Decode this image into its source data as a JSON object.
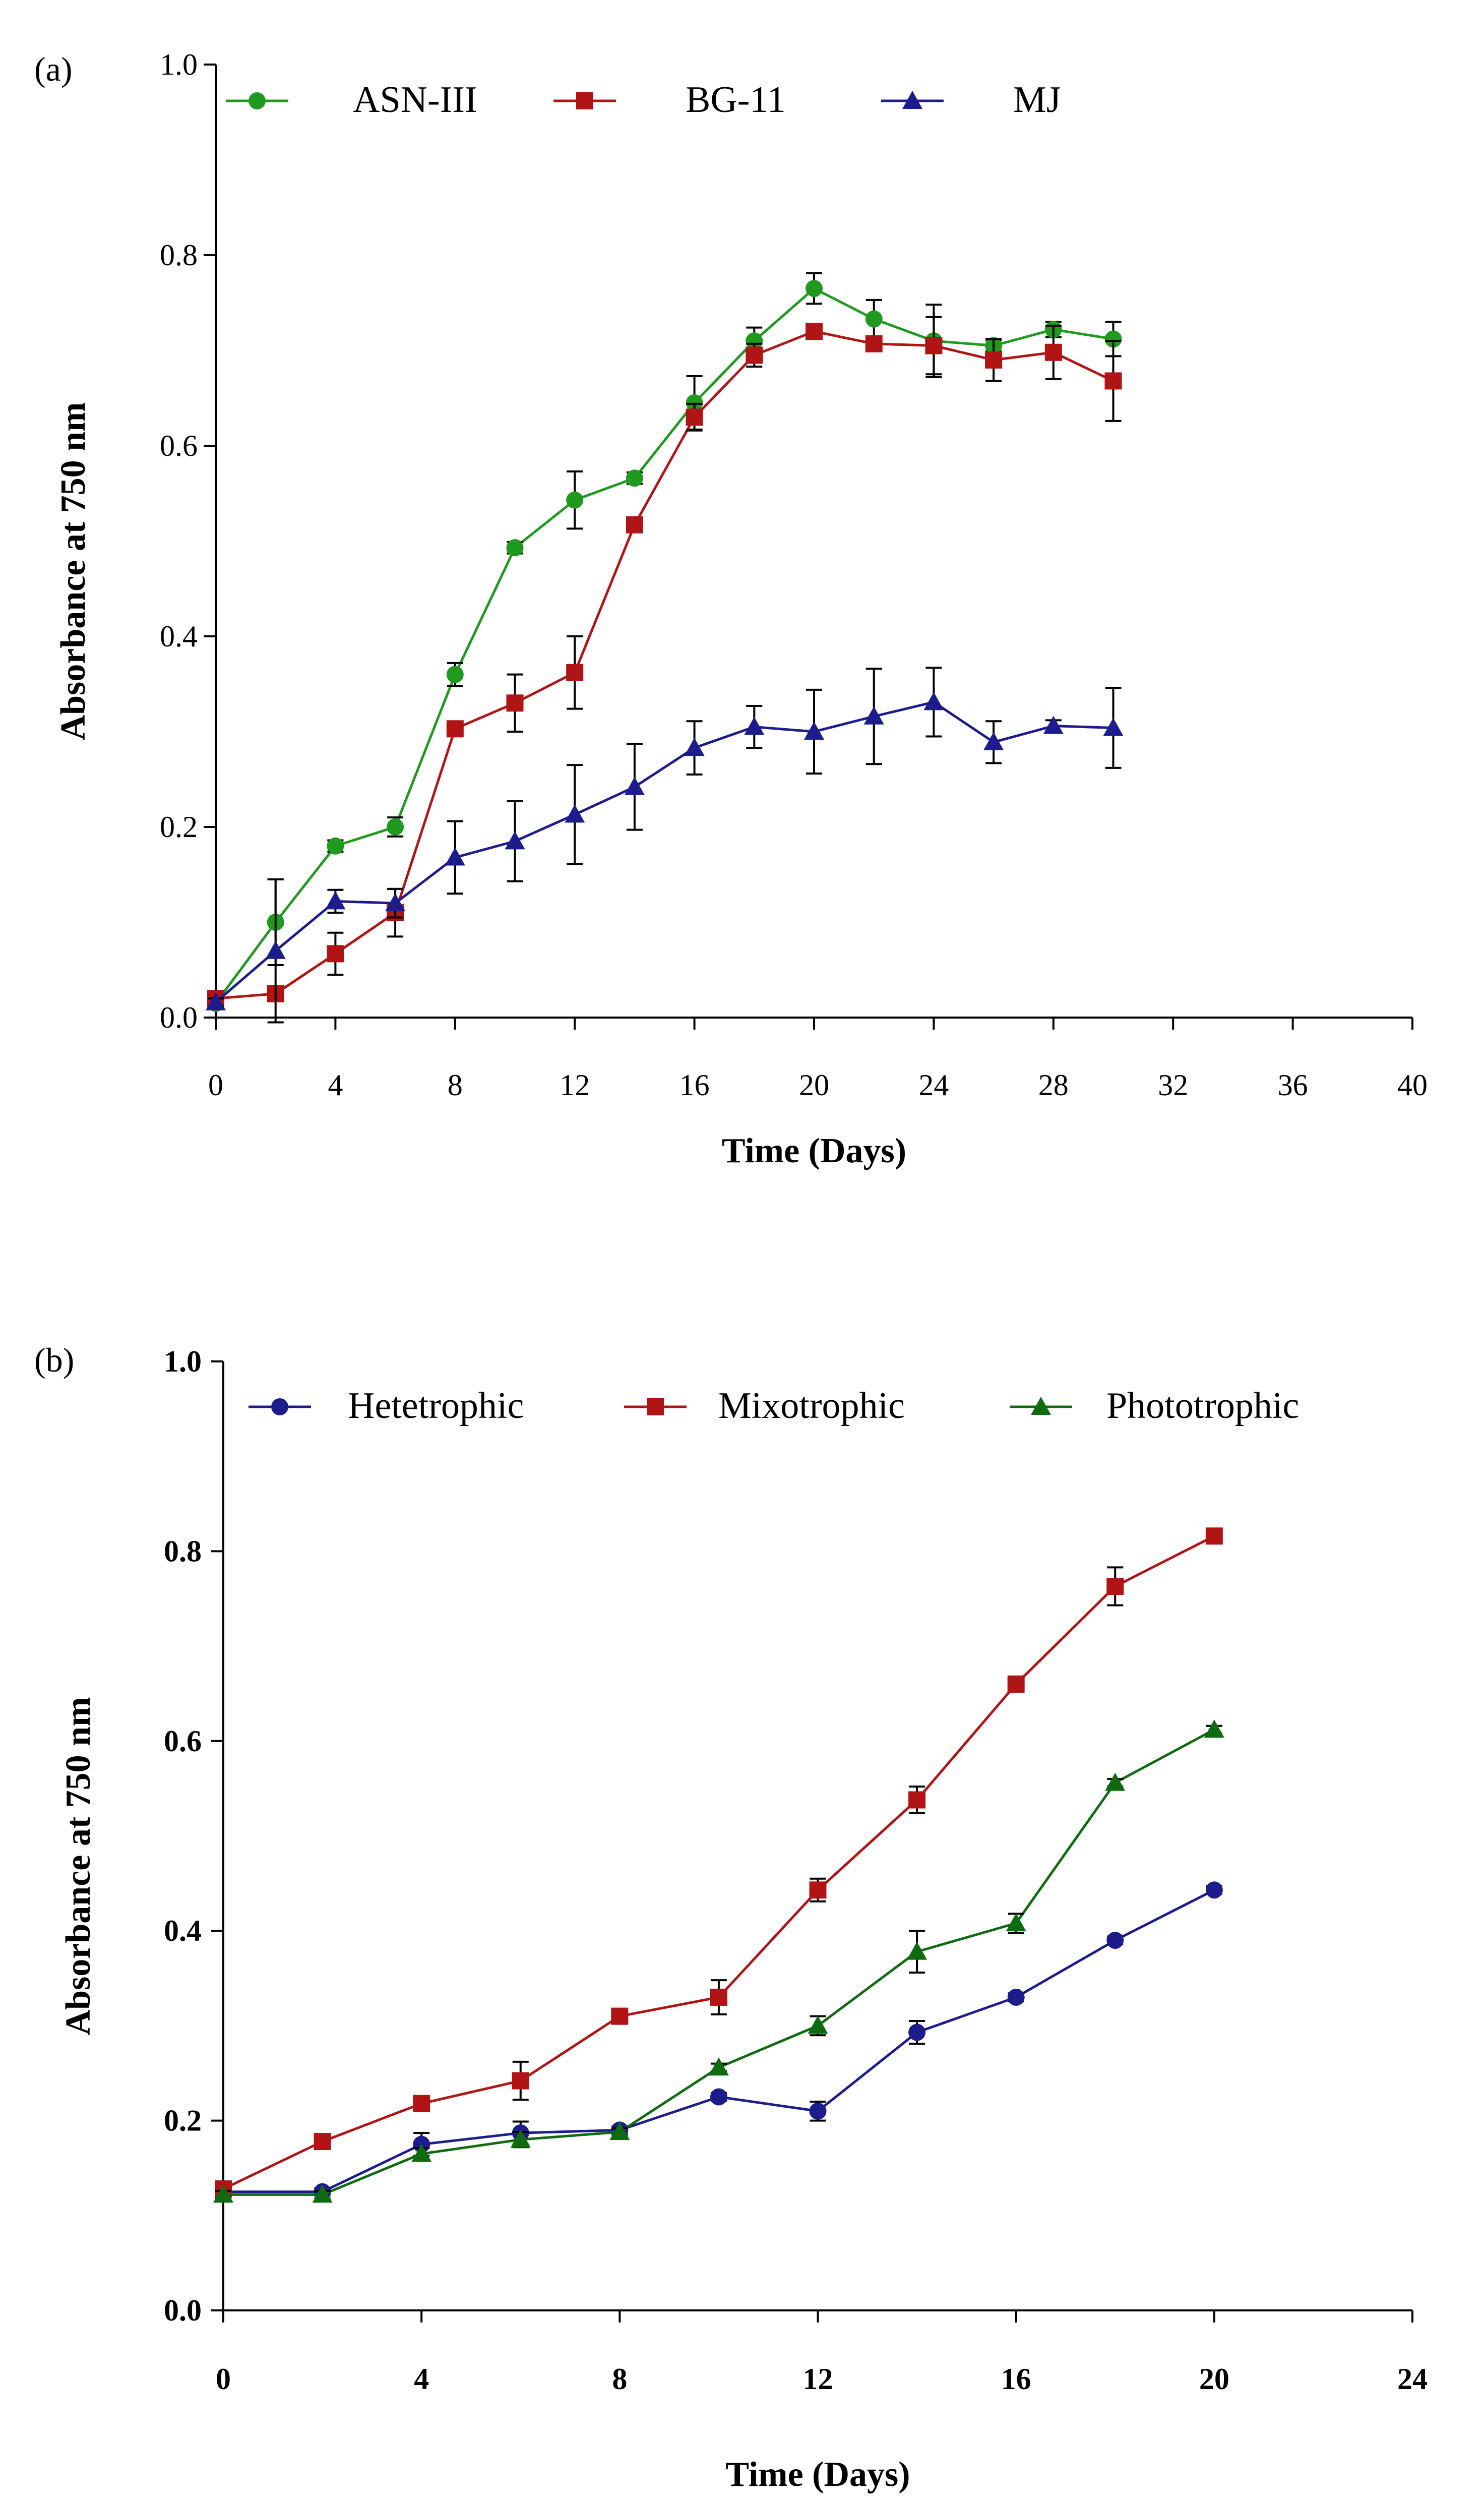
{
  "chart_data": [
    {
      "panel_label": "(a)",
      "type": "line",
      "xlabel": "Time (Days)",
      "ylabel": "Absorbance at 750 nm",
      "xlim": [
        0,
        40
      ],
      "ylim": [
        0,
        1.0
      ],
      "xticks": [
        0,
        4,
        8,
        12,
        16,
        20,
        24,
        28,
        32,
        36,
        40
      ],
      "yticks": [
        "0.0",
        "0.2",
        "0.4",
        "0.6",
        "0.8",
        "1.0"
      ],
      "ytick_values": [
        0,
        0.2,
        0.4,
        0.6,
        0.8,
        1.0
      ],
      "bold_ticks": false,
      "legend_position": "top",
      "x": [
        0,
        2,
        4,
        6,
        8,
        10,
        12,
        14,
        16,
        18,
        20,
        22,
        24,
        26,
        28,
        30
      ],
      "series": [
        {
          "name": "ASN-III",
          "color": "#1f9a1f",
          "marker": "circle",
          "values": [
            0.015,
            0.1,
            0.18,
            0.2,
            0.36,
            0.493,
            0.543,
            0.566,
            0.645,
            0.71,
            0.765,
            0.733,
            0.71,
            0.705,
            0.722,
            0.712
          ],
          "errors": [
            0.005,
            0.045,
            0.006,
            0.01,
            0.012,
            0.006,
            0.03,
            0.006,
            0.028,
            0.014,
            0.016,
            0.02,
            0.038,
            0.006,
            0.008,
            0.018
          ]
        },
        {
          "name": "BG-11",
          "color": "#b01414",
          "marker": "square",
          "values": [
            0.02,
            0.025,
            0.067,
            0.11,
            0.303,
            0.33,
            0.362,
            0.517,
            0.63,
            0.695,
            0.72,
            0.707,
            0.705,
            0.69,
            0.698,
            0.668
          ],
          "errors": [
            0.004,
            0.005,
            0.022,
            0.025,
            0.006,
            0.03,
            0.038,
            0.006,
            0.014,
            0.012,
            0.008,
            0.007,
            0.03,
            0.022,
            0.028,
            0.042
          ]
        },
        {
          "name": "MJ",
          "color": "#1c1c8c",
          "marker": "triangle",
          "values": [
            0.016,
            0.07,
            0.122,
            0.12,
            0.168,
            0.185,
            0.213,
            0.242,
            0.283,
            0.305,
            0.3,
            0.316,
            0.331,
            0.289,
            0.306,
            0.304
          ],
          "errors": [
            0.004,
            0.075,
            0.012,
            0.015,
            0.038,
            0.042,
            0.052,
            0.045,
            0.028,
            0.022,
            0.044,
            0.05,
            0.036,
            0.022,
            0.006,
            0.042
          ]
        }
      ]
    },
    {
      "panel_label": "(b)",
      "type": "line",
      "xlabel": "Time (Days)",
      "ylabel": "Absorbance at 750 nm",
      "xlim": [
        0,
        24
      ],
      "ylim": [
        0,
        1.0
      ],
      "xticks": [
        0,
        4,
        8,
        12,
        16,
        20,
        24
      ],
      "yticks": [
        "0.0",
        "0.2",
        "0.4",
        "0.6",
        "0.8",
        "1.0"
      ],
      "ytick_values": [
        0,
        0.2,
        0.4,
        0.6,
        0.8,
        1.0
      ],
      "bold_ticks": true,
      "legend_position": "top",
      "x": [
        0,
        2,
        4,
        6,
        8,
        10,
        12,
        14,
        16,
        18,
        20
      ],
      "series": [
        {
          "name": "Hetetrophic",
          "color": "#1c1c8c",
          "marker": "circle",
          "values": [
            0.125,
            0.125,
            0.175,
            0.187,
            0.19,
            0.225,
            0.21,
            0.293,
            0.33,
            0.39,
            0.443
          ],
          "errors": [
            0.004,
            0.004,
            0.012,
            0.012,
            0.004,
            0.004,
            0.01,
            0.012,
            0.004,
            0.004,
            0.004
          ]
        },
        {
          "name": "Mixotrophic",
          "color": "#b01414",
          "marker": "square",
          "values": [
            0.128,
            0.178,
            0.218,
            0.242,
            0.31,
            0.33,
            0.443,
            0.538,
            0.66,
            0.763,
            0.816
          ],
          "errors": [
            0.004,
            0.004,
            0.004,
            0.02,
            0.004,
            0.018,
            0.012,
            0.014,
            0.008,
            0.02,
            0.004
          ]
        },
        {
          "name": "Phototrophic",
          "color": "#0f6b0f",
          "marker": "triangle",
          "values": [
            0.122,
            0.122,
            0.165,
            0.18,
            0.188,
            0.256,
            0.3,
            0.378,
            0.408,
            0.556,
            0.612
          ],
          "errors": [
            0.004,
            0.004,
            0.006,
            0.008,
            0.004,
            0.004,
            0.01,
            0.022,
            0.01,
            0.004,
            0.004
          ]
        }
      ]
    }
  ]
}
